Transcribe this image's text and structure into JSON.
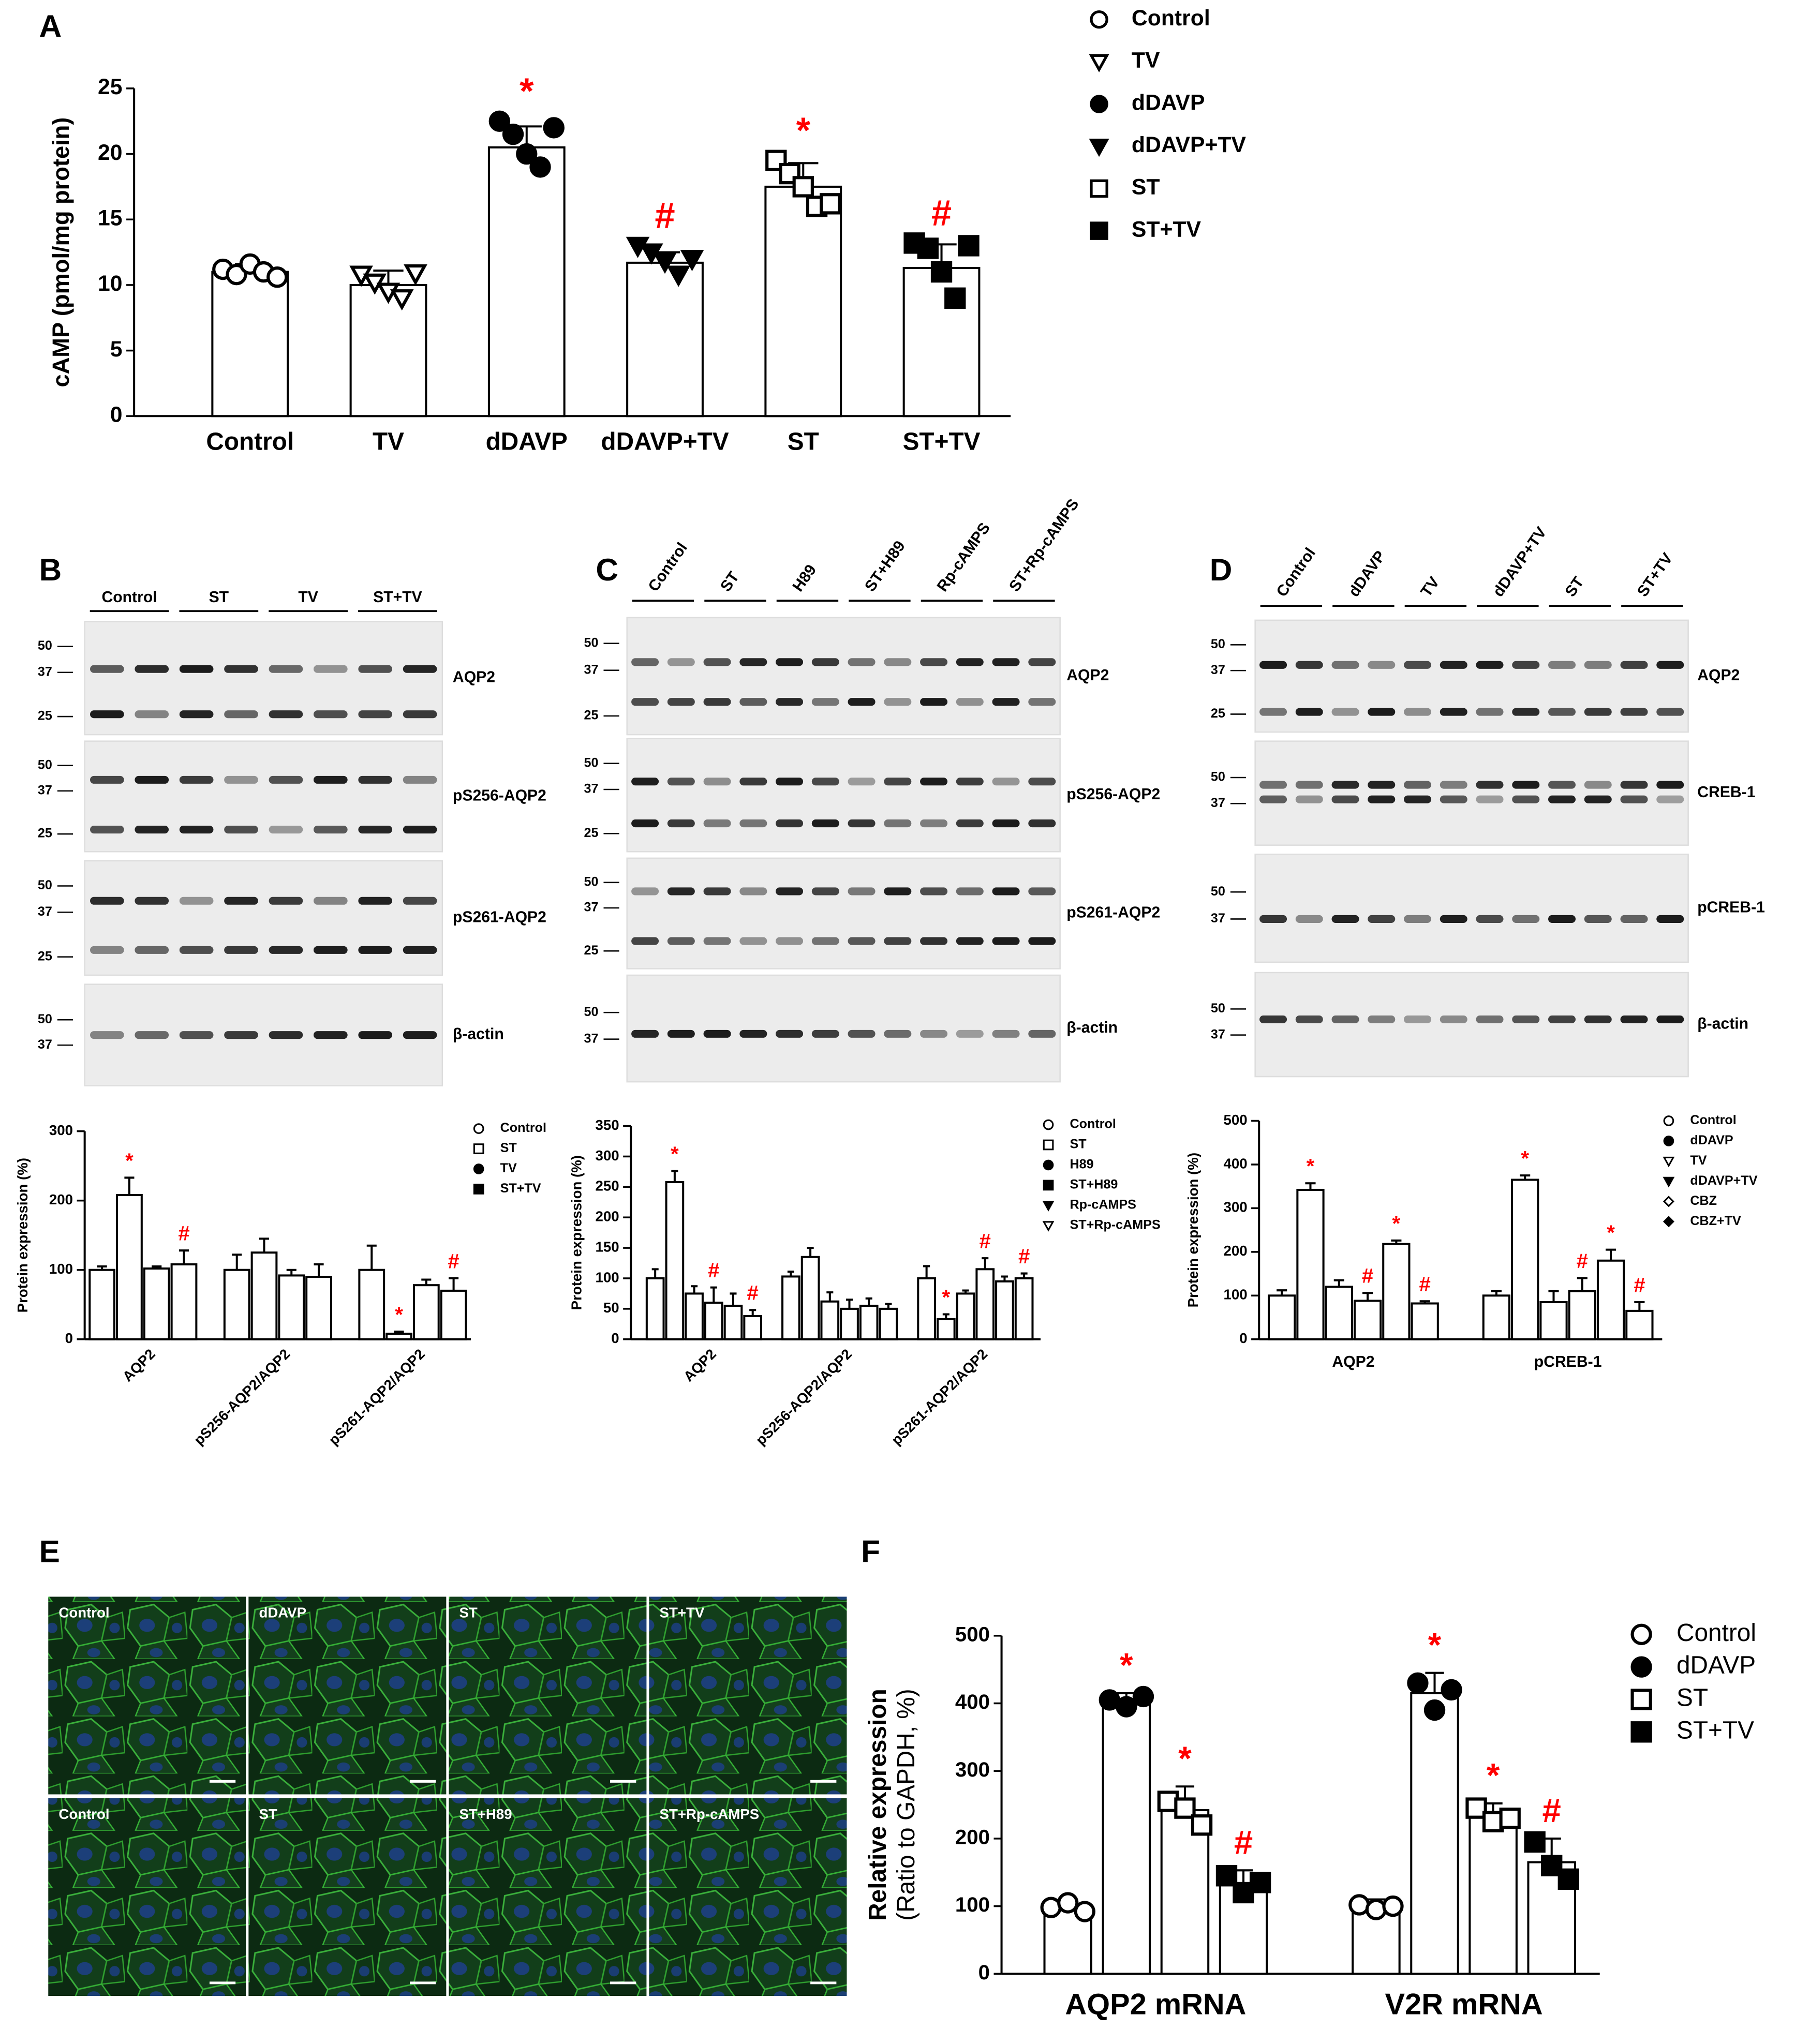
{
  "panel_labels": [
    "A",
    "B",
    "C",
    "D",
    "E",
    "F"
  ],
  "chart_data": [
    {
      "type": "bar",
      "ylabel": "cAMP (pmol/mg protein)",
      "categories": [
        "Control",
        "TV",
        "dDAVP",
        "dDAVP+TV",
        "ST",
        "ST+TV"
      ],
      "markers": [
        "circle-open",
        "triangle-down-open",
        "circle",
        "triangle-down",
        "square-open",
        "square"
      ],
      "values": [
        11,
        10,
        20.5,
        11.7,
        17.5,
        11.3
      ],
      "errors": [
        0.6,
        1.1,
        1.6,
        0.8,
        1.8,
        1.8
      ],
      "points": [
        [
          11.2,
          10.8,
          11.6,
          11.0,
          10.6
        ],
        [
          10.8,
          10.2,
          9.5,
          9.0,
          10.9
        ],
        [
          22.5,
          21.5,
          20.0,
          19.0,
          22.0
        ],
        [
          13.0,
          12.5,
          11.8,
          10.8,
          12.0
        ],
        [
          19.5,
          18.5,
          17.5,
          16.0,
          16.2
        ],
        [
          13.2,
          12.8,
          11.0,
          9.0,
          13.0
        ]
      ],
      "annotations": [
        null,
        null,
        "*",
        "#",
        "*",
        "#"
      ],
      "annotation_color": "#ff0000",
      "ylim": [
        0,
        25
      ],
      "yticks": [
        0,
        5,
        10,
        15,
        20,
        25
      ]
    },
    {
      "type": "grouped_bar",
      "ylabel": "Protein expression (%)",
      "categories": [
        "AQP2",
        "pS256-AQP2/AQP2",
        "pS261-AQP2/AQP2"
      ],
      "series": [
        {
          "name": "Control",
          "marker": "circle-open",
          "values": [
            100,
            100,
            100
          ],
          "errors": [
            5,
            22,
            35
          ],
          "annotations": [
            null,
            null,
            null
          ]
        },
        {
          "name": "ST",
          "marker": "square-open",
          "values": [
            208,
            125,
            8
          ],
          "errors": [
            25,
            20,
            3
          ],
          "annotations": [
            "*",
            null,
            "*"
          ]
        },
        {
          "name": "TV",
          "marker": "circle",
          "values": [
            102,
            92,
            78
          ],
          "errors": [
            3,
            8,
            8
          ],
          "annotations": [
            null,
            null,
            null
          ]
        },
        {
          "name": "ST+TV",
          "marker": "square",
          "values": [
            108,
            90,
            70
          ],
          "errors": [
            20,
            18,
            18
          ],
          "annotations": [
            "#",
            null,
            "#"
          ]
        }
      ],
      "annotation_color": "#ff0000",
      "ylim": [
        0,
        300
      ],
      "yticks": [
        0,
        100,
        200,
        300
      ]
    },
    {
      "type": "grouped_bar",
      "ylabel": "Protein expression (%)",
      "categories": [
        "AQP2",
        "pS256-AQP2/AQP2",
        "pS261-AQP2/AQP2"
      ],
      "series": [
        {
          "name": "Control",
          "marker": "circle-open",
          "values": [
            100,
            103,
            100
          ],
          "errors": [
            15,
            8,
            20
          ],
          "annotations": [
            null,
            null,
            null
          ]
        },
        {
          "name": "ST",
          "marker": "square-open",
          "values": [
            258,
            135,
            33
          ],
          "errors": [
            18,
            15,
            8
          ],
          "annotations": [
            "*",
            null,
            "*"
          ]
        },
        {
          "name": "H89",
          "marker": "circle",
          "values": [
            75,
            62,
            75
          ],
          "errors": [
            12,
            15,
            5
          ],
          "annotations": [
            null,
            null,
            null
          ]
        },
        {
          "name": "ST+H89",
          "marker": "square",
          "values": [
            60,
            50,
            115
          ],
          "errors": [
            25,
            15,
            18
          ],
          "annotations": [
            "#",
            null,
            "#"
          ]
        },
        {
          "name": "Rp-cAMPS",
          "marker": "triangle-down",
          "values": [
            55,
            55,
            95
          ],
          "errors": [
            20,
            12,
            8
          ],
          "annotations": [
            null,
            null,
            null
          ]
        },
        {
          "name": "ST+Rp-cAMPS",
          "marker": "triangle-down-open",
          "values": [
            38,
            50,
            100
          ],
          "errors": [
            10,
            8,
            8
          ],
          "annotations": [
            "#",
            null,
            "#"
          ]
        }
      ],
      "annotation_color": "#ff0000",
      "ylim": [
        0,
        350
      ],
      "yticks": [
        0,
        50,
        100,
        150,
        200,
        250,
        300,
        350
      ]
    },
    {
      "type": "grouped_bar",
      "ylabel": "Protein expression (%)",
      "categories": [
        "AQP2",
        "pCREB-1"
      ],
      "series": [
        {
          "name": "Control",
          "marker": "circle-open",
          "values": [
            100,
            100
          ],
          "errors": [
            12,
            10
          ],
          "annotations": [
            null,
            null
          ]
        },
        {
          "name": "dDAVP",
          "marker": "circle",
          "values": [
            342,
            365
          ],
          "errors": [
            15,
            10
          ],
          "annotations": [
            "*",
            "*"
          ]
        },
        {
          "name": "TV",
          "marker": "triangle-down-open",
          "values": [
            120,
            85
          ],
          "errors": [
            15,
            25
          ],
          "annotations": [
            null,
            null
          ]
        },
        {
          "name": "dDAVP+TV",
          "marker": "triangle-down",
          "values": [
            88,
            110
          ],
          "errors": [
            18,
            30
          ],
          "annotations": [
            "#",
            "#"
          ]
        },
        {
          "name": "CBZ",
          "marker": "diamond-open",
          "values": [
            218,
            180
          ],
          "errors": [
            8,
            25
          ],
          "annotations": [
            "*",
            "*"
          ]
        },
        {
          "name": "CBZ+TV",
          "marker": "diamond",
          "values": [
            82,
            65
          ],
          "errors": [
            5,
            20
          ],
          "annotations": [
            "#",
            "#"
          ]
        }
      ],
      "annotation_color": "#ff0000",
      "ylim": [
        0,
        500
      ],
      "yticks": [
        0,
        100,
        200,
        300,
        400,
        500
      ]
    },
    {
      "type": "grouped_bar",
      "ylabel": [
        "Relative expression",
        "(Ratio to GAPDH, %)"
      ],
      "categories": [
        "AQP2 mRNA",
        "V2R mRNA"
      ],
      "series": [
        {
          "name": "Control",
          "marker": "circle-open",
          "values": [
            100,
            100
          ],
          "errors": [
            12,
            10
          ],
          "points": [
            [
              98,
              105,
              92
            ],
            [
              102,
              95,
              100
            ]
          ],
          "annotations": [
            null,
            null
          ]
        },
        {
          "name": "dDAVP",
          "marker": "circle",
          "values": [
            400,
            415
          ],
          "errors": [
            15,
            30
          ],
          "points": [
            [
              405,
              395,
              410
            ],
            [
              430,
              390,
              420
            ]
          ],
          "annotations": [
            "*",
            "*"
          ]
        },
        {
          "name": "ST",
          "marker": "square-open",
          "values": [
            242,
            232
          ],
          "errors": [
            35,
            20
          ],
          "points": [
            [
              255,
              245,
              220
            ],
            [
              245,
              225,
              230
            ]
          ],
          "annotations": [
            "*",
            "*"
          ]
        },
        {
          "name": "ST+TV",
          "marker": "square",
          "values": [
            133,
            165
          ],
          "errors": [
            20,
            35
          ],
          "points": [
            [
              145,
              120,
              135
            ],
            [
              195,
              160,
              140
            ]
          ],
          "annotations": [
            "#",
            "#"
          ]
        }
      ],
      "annotation_color": "#ff0000",
      "ylim": [
        0,
        500
      ],
      "yticks": [
        0,
        100,
        200,
        300,
        400,
        500
      ]
    }
  ],
  "blots": [
    {
      "groups": [
        "Control",
        "ST",
        "TV",
        "ST+TV"
      ],
      "rows": [
        {
          "label": "AQP2",
          "mw": [
            50,
            37,
            25
          ]
        },
        {
          "label": "pS256-AQP2",
          "mw": [
            50,
            37,
            25
          ]
        },
        {
          "label": "pS261-AQP2",
          "mw": [
            50,
            37,
            25
          ]
        },
        {
          "label": "β-actin",
          "mw": [
            50,
            37
          ]
        }
      ]
    },
    {
      "groups": [
        "Control",
        "ST",
        "H89",
        "ST+H89",
        "Rp-cAMPS",
        "ST+Rp-cAMPS"
      ],
      "rows": [
        {
          "label": "AQP2",
          "mw": [
            50,
            37,
            25
          ]
        },
        {
          "label": "pS256-AQP2",
          "mw": [
            50,
            37,
            25
          ]
        },
        {
          "label": "pS261-AQP2",
          "mw": [
            50,
            37,
            25
          ]
        },
        {
          "label": "β-actin",
          "mw": [
            50,
            37
          ]
        }
      ]
    },
    {
      "groups": [
        "Control",
        "dDAVP",
        "TV",
        "dDAVP+TV",
        "ST",
        "ST+TV"
      ],
      "rows": [
        {
          "label": "AQP2",
          "mw": [
            50,
            37,
            25
          ]
        },
        {
          "label": "CREB-1",
          "mw": [
            50,
            37
          ]
        },
        {
          "label": "pCREB-1",
          "mw": [
            50,
            37
          ]
        },
        {
          "label": "β-actin",
          "mw": [
            50,
            37
          ]
        }
      ]
    }
  ],
  "images": {
    "labels": [
      "Control",
      "dDAVP",
      "ST",
      "ST+TV",
      "Control",
      "ST",
      "ST+H89",
      "ST+Rp-cAMPS"
    ]
  }
}
